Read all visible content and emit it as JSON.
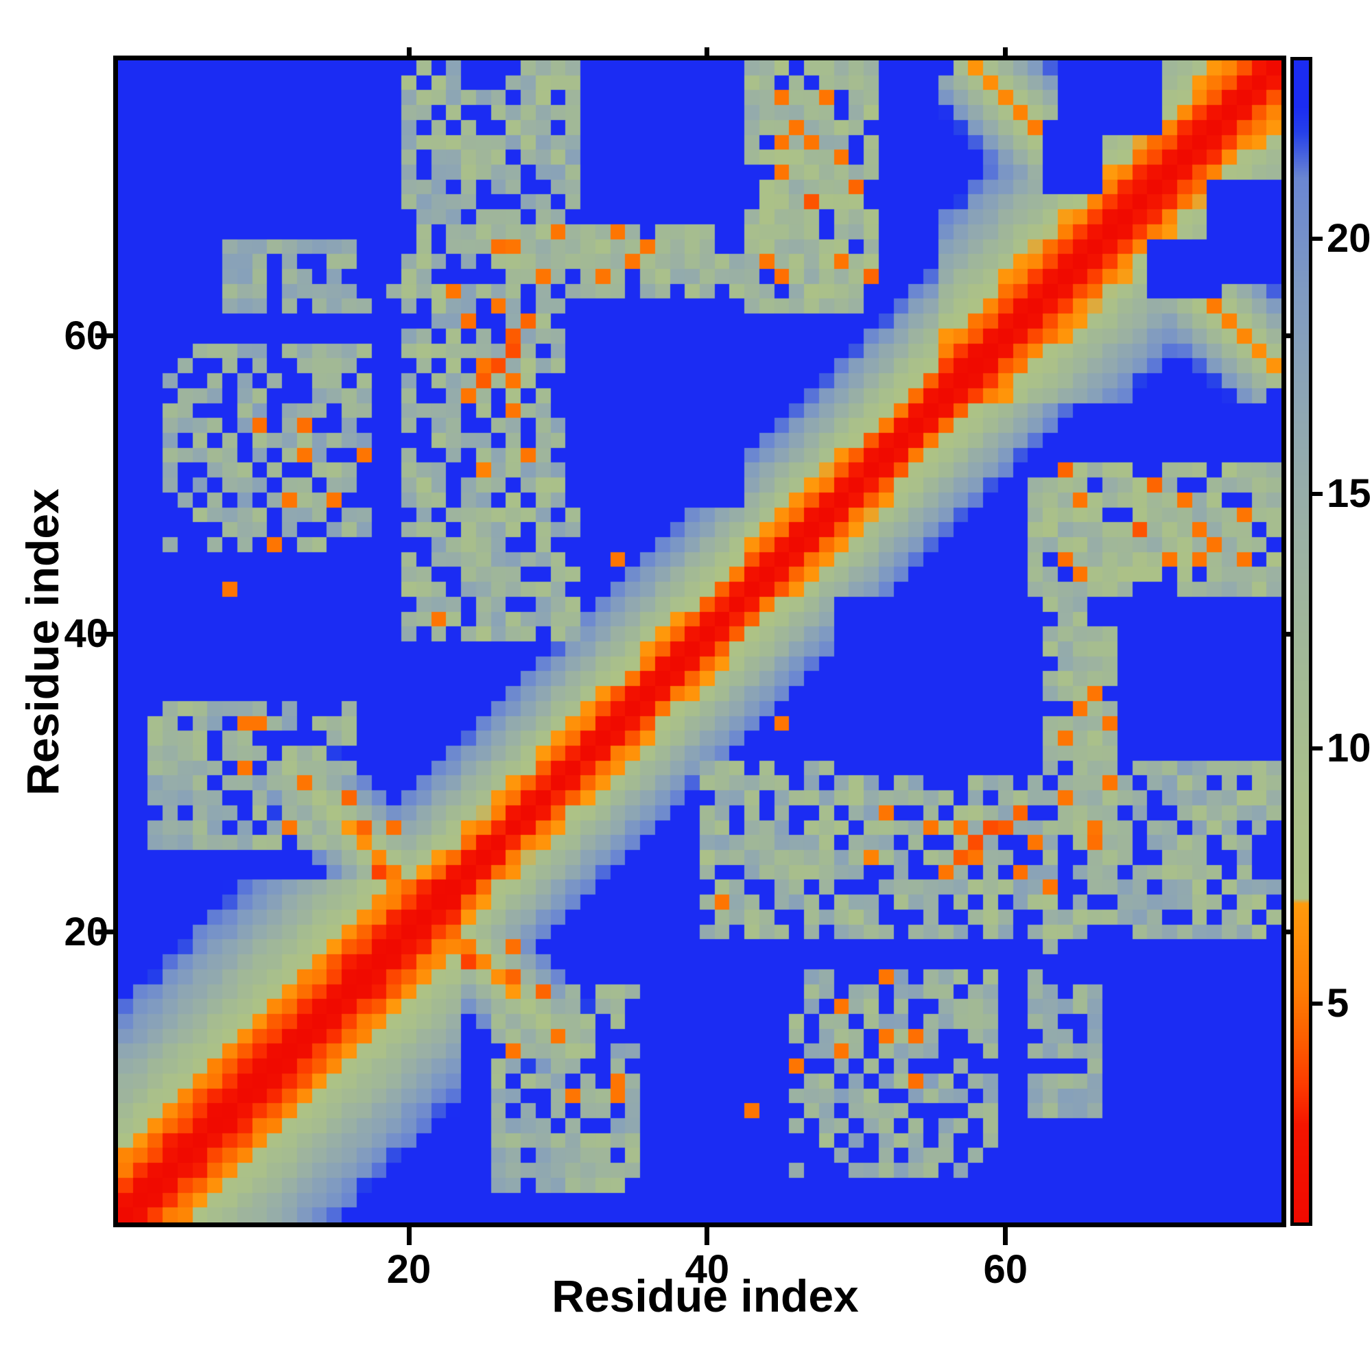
{
  "figure": {
    "background": "#ffffff",
    "frame_color": "#000000"
  },
  "chart_data": {
    "type": "heatmap",
    "title": "",
    "xlabel": "Residue index",
    "ylabel": "Residue index",
    "n_residues": 78,
    "axis_range": [
      1,
      78
    ],
    "x_ticks": [
      20,
      40,
      60
    ],
    "y_ticks": [
      20,
      40,
      60
    ],
    "grid": false,
    "legend": "colorbar-right",
    "value_range": [
      0.7,
      23.5
    ],
    "colorbar": {
      "ticks": [
        5,
        10,
        15,
        20
      ],
      "vmin": 0.7,
      "vmax": 23.5
    },
    "colormap_stops": [
      [
        0.7,
        "#f00a00"
      ],
      [
        2.6,
        "#f51500"
      ],
      [
        3.4,
        "#fd3c00"
      ],
      [
        4.3,
        "#fd5f00"
      ],
      [
        5.3,
        "#fe7f03"
      ],
      [
        6.95,
        "#ff9a0c"
      ],
      [
        7.05,
        "#adc285"
      ],
      [
        9.0,
        "#aac08a"
      ],
      [
        11.5,
        "#a2b995"
      ],
      [
        14.0,
        "#9bb1a3"
      ],
      [
        16.5,
        "#8fa7b2"
      ],
      [
        19.0,
        "#7f9ac2"
      ],
      [
        21.2,
        "#6a86d2"
      ],
      [
        22.1,
        "#2540ea"
      ],
      [
        22.6,
        "#1b2cf3"
      ],
      [
        23.5,
        "#1b2cf3"
      ]
    ],
    "model": {
      "symmetric": true,
      "diagonal_value": 0.7,
      "backbone_rate": 2.35,
      "backbone_jitter": 0.7,
      "segments": [
        {
          "range": [
            1,
            23
          ],
          "rate": 1.55
        },
        {
          "range": [
            56,
            78
          ],
          "rate": 1.8
        }
      ],
      "antiparallel": [
        {
          "center": 21.5,
          "halfspan": 9.5,
          "dmin": 3.8,
          "axial_rate": 0.28,
          "width_rate": 3.4,
          "gate": 6
        },
        {
          "center": 68.0,
          "halfspan": 10.5,
          "dmin": 3.0,
          "axial_rate": 0.18,
          "width_rate": 3.2,
          "gate": 6
        }
      ],
      "blocks": [
        {
          "i": [
            3,
            16
          ],
          "j": [
            26,
            35
          ],
          "base": 13.5,
          "jitter": 4.0,
          "density": 0.72
        },
        {
          "i": [
            4,
            17
          ],
          "j": [
            46,
            59
          ],
          "base": 14.0,
          "jitter": 4.3,
          "density": 0.62
        },
        {
          "i": [
            8,
            16
          ],
          "j": [
            62,
            66
          ],
          "base": 14.5,
          "jitter": 3.5,
          "density": 0.55
        },
        {
          "i": [
            20,
            31
          ],
          "j": [
            40,
            78
          ],
          "base": 13.0,
          "jitter": 4.5,
          "density": 0.75
        },
        {
          "i": [
            43,
            51
          ],
          "j": [
            63,
            78
          ],
          "base": 11.5,
          "jitter": 4.0,
          "density": 0.85
        },
        {
          "i": [
            24,
            40
          ],
          "j": [
            66,
            67
          ],
          "base": 12.0,
          "jitter": 3.0,
          "density": 0.9
        },
        {
          "i": [
            30,
            50
          ],
          "j": [
            62,
            65
          ],
          "base": 12.5,
          "jitter": 3.5,
          "density": 0.85
        }
      ],
      "holes": [
        {
          "i": [
            31,
            42
          ],
          "j": [
            49,
            62
          ]
        },
        {
          "i": [
            63,
            66
          ],
          "j": [
            70,
            74
          ]
        },
        {
          "i": [
            64,
            70
          ],
          "j": [
            74,
            78
          ]
        }
      ],
      "speckles": [
        [
          9,
          31,
          5
        ],
        [
          13,
          30,
          5
        ],
        [
          16,
          29,
          4.5
        ],
        [
          9,
          34,
          5
        ],
        [
          10,
          34,
          5
        ],
        [
          12,
          27,
          5
        ],
        [
          17,
          27,
          4.5
        ],
        [
          19,
          27,
          4.8
        ],
        [
          18,
          24,
          3.5
        ],
        [
          24,
          61,
          4.8
        ],
        [
          26,
          62,
          5
        ],
        [
          25,
          58,
          5
        ],
        [
          27,
          57,
          5
        ],
        [
          23,
          63,
          5
        ],
        [
          28,
          52,
          5
        ],
        [
          25,
          51,
          5.5
        ],
        [
          34,
          45,
          5
        ],
        [
          22,
          41,
          5
        ],
        [
          26,
          66,
          4.8
        ],
        [
          27,
          66,
          5
        ],
        [
          30,
          67,
          5
        ],
        [
          34,
          67,
          5
        ],
        [
          36,
          66,
          5
        ],
        [
          29,
          64,
          5
        ],
        [
          35,
          65,
          5
        ],
        [
          33,
          64,
          5
        ],
        [
          45,
          76,
          5
        ],
        [
          48,
          76,
          5
        ],
        [
          45,
          73,
          5
        ],
        [
          47,
          73,
          5
        ],
        [
          49,
          72,
          5
        ],
        [
          50,
          70,
          4.5
        ],
        [
          44,
          65,
          5
        ],
        [
          49,
          65,
          5
        ],
        [
          51,
          64,
          4.5
        ],
        [
          47,
          69,
          4
        ],
        [
          45,
          64,
          4.8
        ],
        [
          45,
          71,
          5
        ],
        [
          46,
          74,
          5
        ],
        [
          25,
          57,
          4.2
        ],
        [
          26,
          58,
          3.8
        ],
        [
          27,
          59,
          3.8
        ],
        [
          27,
          60,
          4.2
        ],
        [
          28,
          61,
          4.5
        ],
        [
          24,
          56,
          5
        ],
        [
          27,
          55,
          5
        ],
        [
          15,
          49,
          5
        ],
        [
          12,
          49,
          5
        ],
        [
          11,
          46,
          5
        ],
        [
          13,
          52,
          5
        ],
        [
          17,
          52,
          5
        ],
        [
          10,
          54,
          4.8
        ],
        [
          13,
          54,
          4.8
        ],
        [
          8,
          43,
          5
        ],
        [
          17,
          62,
          14
        ],
        [
          19,
          63,
          14
        ],
        [
          15,
          66,
          17
        ],
        [
          22,
          74,
          12
        ]
      ]
    }
  }
}
